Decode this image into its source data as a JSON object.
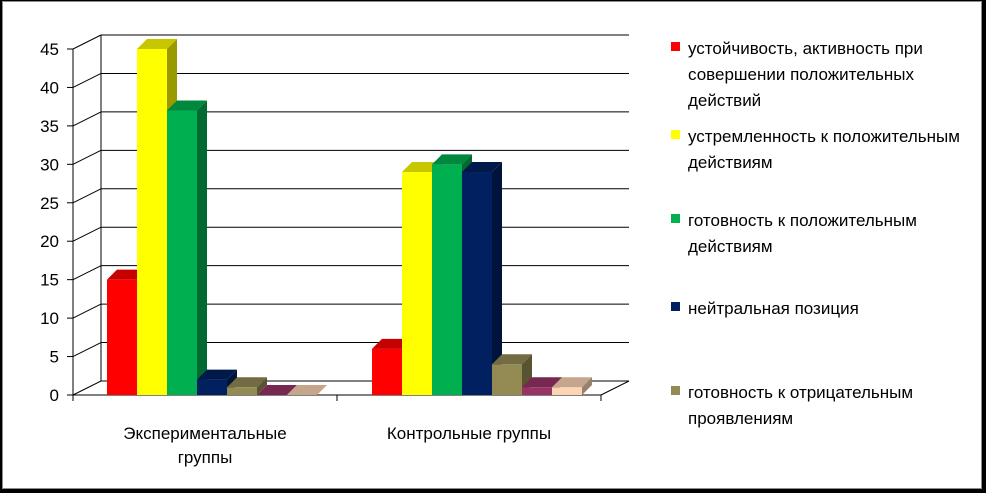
{
  "chart_data": {
    "type": "bar",
    "title": "",
    "xlabel": "",
    "ylabel": "",
    "ylim": [
      0,
      45
    ],
    "yticks": [
      0,
      5,
      10,
      15,
      20,
      25,
      30,
      35,
      40,
      45
    ],
    "categories": [
      "Экспериментальные группы",
      "Контрольные группы"
    ],
    "grid": true,
    "legend_position": "right",
    "series": [
      {
        "name": "устойчивость, активность при совершении положительных действий",
        "color": "#ff0000",
        "values": [
          15,
          6
        ]
      },
      {
        "name": "устремленность к положительным действиям",
        "color": "#ffff00",
        "values": [
          45,
          29
        ]
      },
      {
        "name": "готовность к положительным действиям",
        "color": "#00b050",
        "values": [
          37,
          30
        ]
      },
      {
        "name": "нейтральная позиция",
        "color": "#002060",
        "values": [
          2,
          29
        ]
      },
      {
        "name": "готовность к отрицательным проявлениям",
        "color": "#948a54",
        "values": [
          1,
          4
        ]
      },
      {
        "name": "",
        "color": "#993366",
        "values": [
          0,
          1
        ]
      },
      {
        "name": "",
        "color": "#fcd5b4",
        "values": [
          0,
          1
        ]
      }
    ]
  }
}
